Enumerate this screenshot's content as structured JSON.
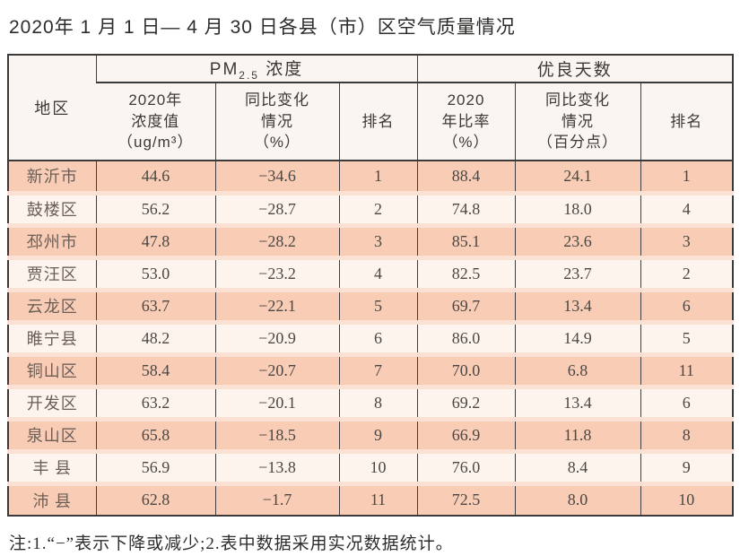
{
  "title": "2020年 1 月 1 日— 4 月 30 日各县（市）区空气质量情况",
  "footnote": "注:1.“−”表示下降或减少;2.表中数据采用实况数据统计。",
  "colors": {
    "row_odd": "#f8ccb5",
    "row_even": "#fdf4ee",
    "row_gap_stripe": "#fbe1d3",
    "header_bg": "#fbf5f1",
    "border_dark": "#3a3a3a"
  },
  "table": {
    "region_header": "地区",
    "pm_group": {
      "prefix": "PM",
      "sub": "2.5",
      "suffix": " 浓度"
    },
    "days_group": "优良天数",
    "subheaders": {
      "pm_value": "2020年\n浓度值\n（ug/m³）",
      "pm_change": "同比变化\n情况\n（%）",
      "pm_rank": "排名",
      "days_rate": "2020\n年比率\n（%）",
      "days_change": "同比变化\n情况\n（百分点）",
      "days_rank": "排名"
    },
    "rows": [
      {
        "region": "新沂市",
        "pm_value": "44.6",
        "pm_change": "−34.6",
        "pm_rank": "1",
        "days_rate": "88.4",
        "days_change": "24.1",
        "days_rank": "1"
      },
      {
        "region": "鼓楼区",
        "pm_value": "56.2",
        "pm_change": "−28.7",
        "pm_rank": "2",
        "days_rate": "74.8",
        "days_change": "18.0",
        "days_rank": "4"
      },
      {
        "region": "邳州市",
        "pm_value": "47.8",
        "pm_change": "−28.2",
        "pm_rank": "3",
        "days_rate": "85.1",
        "days_change": "23.6",
        "days_rank": "3"
      },
      {
        "region": "贾汪区",
        "pm_value": "53.0",
        "pm_change": "−23.2",
        "pm_rank": "4",
        "days_rate": "82.5",
        "days_change": "23.7",
        "days_rank": "2"
      },
      {
        "region": "云龙区",
        "pm_value": "63.7",
        "pm_change": "−22.1",
        "pm_rank": "5",
        "days_rate": "69.7",
        "days_change": "13.4",
        "days_rank": "6"
      },
      {
        "region": "睢宁县",
        "pm_value": "48.2",
        "pm_change": "−20.9",
        "pm_rank": "6",
        "days_rate": "86.0",
        "days_change": "14.9",
        "days_rank": "5"
      },
      {
        "region": "铜山区",
        "pm_value": "58.4",
        "pm_change": "−20.7",
        "pm_rank": "7",
        "days_rate": "70.0",
        "days_change": "6.8",
        "days_rank": "11"
      },
      {
        "region": "开发区",
        "pm_value": "63.2",
        "pm_change": "−20.1",
        "pm_rank": "8",
        "days_rate": "69.2",
        "days_change": "13.4",
        "days_rank": "6"
      },
      {
        "region": "泉山区",
        "pm_value": "65.8",
        "pm_change": "−18.5",
        "pm_rank": "9",
        "days_rate": "66.9",
        "days_change": "11.8",
        "days_rank": "8"
      },
      {
        "region": "丰 县",
        "pm_value": "56.9",
        "pm_change": "−13.8",
        "pm_rank": "10",
        "days_rate": "76.0",
        "days_change": "8.4",
        "days_rank": "9"
      },
      {
        "region": "沛 县",
        "pm_value": "62.8",
        "pm_change": "−1.7",
        "pm_rank": "11",
        "days_rate": "72.5",
        "days_change": "8.0",
        "days_rank": "10"
      }
    ]
  }
}
